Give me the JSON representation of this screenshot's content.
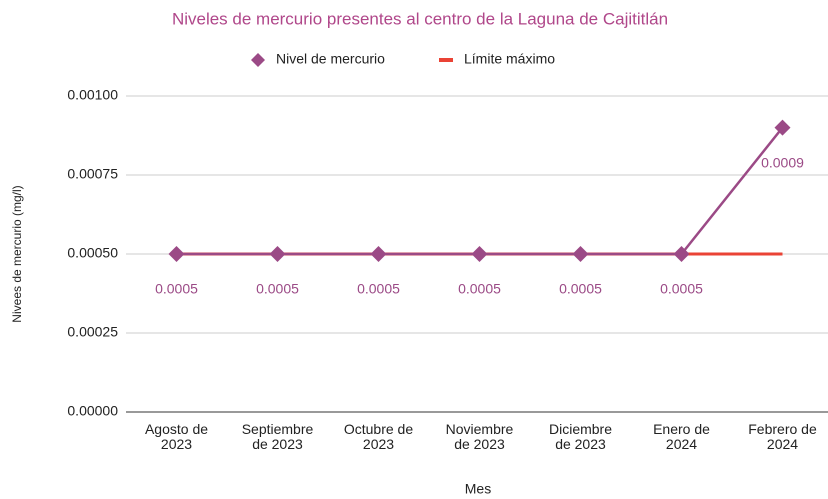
{
  "chart_data": {
    "type": "line",
    "title": "Niveles de mercurio presentes al centro de la Laguna de Cajititlán",
    "x_label": "Mes",
    "y_label": "Nivees de mercurio (mg/l)",
    "categories": [
      "Agosto de\n2023",
      "Septiembre\nde 2023",
      "Octubre de\n2023",
      "Noviembre\nde 2023",
      "Diciembre\nde 2023",
      "Enero de\n2024",
      "Febrero de\n2024"
    ],
    "series": [
      {
        "name": "Nivel de mercurio",
        "color": "#9b4a86",
        "marker": "diamond",
        "values": [
          0.0005,
          0.0005,
          0.0005,
          0.0005,
          0.0005,
          0.0005,
          0.0009
        ]
      },
      {
        "name": "Límite máximo",
        "color": "#ea4335",
        "values": [
          0.0005,
          0.0005,
          0.0005,
          0.0005,
          0.0005,
          0.0005,
          0.0005
        ]
      }
    ],
    "ylim": [
      0,
      0.001
    ],
    "yticks": [
      {
        "value": 0,
        "label": "0.00000"
      },
      {
        "value": 0.00025,
        "label": "0.00025"
      },
      {
        "value": 0.0005,
        "label": "0.00050"
      },
      {
        "value": 0.00075,
        "label": "0.00075"
      },
      {
        "value": 0.001,
        "label": "0.00100"
      }
    ],
    "grid": true,
    "legend": "top"
  }
}
